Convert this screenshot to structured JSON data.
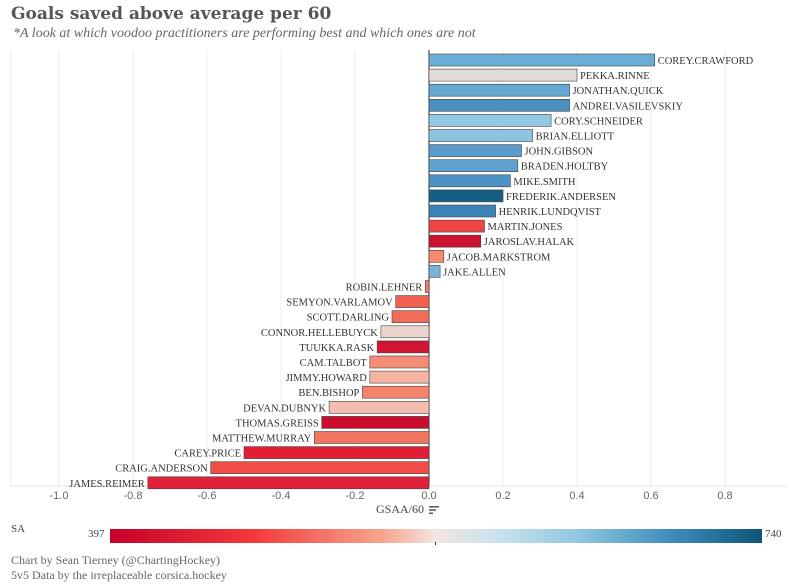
{
  "title": "Goals saved above average per 60",
  "subtitle": "*A look at which voodoo practitioners are performing best and which ones are not",
  "chart_data": {
    "type": "bar",
    "orientation": "horizontal",
    "xlabel": "GSAA/60",
    "xlim": [
      -1.1,
      0.95
    ],
    "xticks": [
      -1.0,
      -0.8,
      -0.6,
      -0.4,
      -0.2,
      0.0,
      0.2,
      0.4,
      0.6,
      0.8
    ],
    "xtick_labels": [
      "-1.0",
      "-0.8",
      "-0.6",
      "-0.4",
      "-0.2",
      "0.0",
      "0.2",
      "0.4",
      "0.6",
      "0.8"
    ],
    "grid": "vertical",
    "color_legend": {
      "label": "SA",
      "min": "397",
      "max": "740"
    },
    "bars": [
      {
        "name": "COREY.CRAWFORD",
        "value": 0.61,
        "color": "#6aaed6"
      },
      {
        "name": "PEKKA.RINNE",
        "value": 0.4,
        "color": "#e2dcd8"
      },
      {
        "name": "JONATHAN.QUICK",
        "value": 0.38,
        "color": "#64a8d2"
      },
      {
        "name": "ANDREI.VASILEVSKIY",
        "value": 0.38,
        "color": "#4b8fc0"
      },
      {
        "name": "CORY.SCHNEIDER",
        "value": 0.33,
        "color": "#93c8e2"
      },
      {
        "name": "BRIAN.ELLIOTT",
        "value": 0.28,
        "color": "#8cc4e0"
      },
      {
        "name": "JOHN.GIBSON",
        "value": 0.25,
        "color": "#5a9ccb"
      },
      {
        "name": "BRADEN.HOLTBY",
        "value": 0.24,
        "color": "#5fa2cf"
      },
      {
        "name": "MIKE.SMITH",
        "value": 0.22,
        "color": "#4c92c4"
      },
      {
        "name": "FREDERIK.ANDERSEN",
        "value": 0.2,
        "color": "#155f85"
      },
      {
        "name": "HENRIK.LUNDQVIST",
        "value": 0.18,
        "color": "#3a83b6"
      },
      {
        "name": "MARTIN.JONES",
        "value": 0.15,
        "color": "#ee4545"
      },
      {
        "name": "JAROSLAV.HALAK",
        "value": 0.14,
        "color": "#cc1230"
      },
      {
        "name": "JACOB.MARKSTROM",
        "value": 0.04,
        "color": "#f58a6e"
      },
      {
        "name": "JAKE.ALLEN",
        "value": 0.03,
        "color": "#78b4da"
      },
      {
        "name": "ROBIN.LEHNER",
        "value": -0.01,
        "color": "#f47e6a"
      },
      {
        "name": "SEMYON.VARLAMOV",
        "value": -0.09,
        "color": "#f06050"
      },
      {
        "name": "SCOTT.DARLING",
        "value": -0.1,
        "color": "#f26d58"
      },
      {
        "name": "CONNOR.HELLEBUYCK",
        "value": -0.13,
        "color": "#ebd5cc"
      },
      {
        "name": "TUUKKA.RASK",
        "value": -0.14,
        "color": "#d01432"
      },
      {
        "name": "CAM.TALBOT",
        "value": -0.16,
        "color": "#f58c75"
      },
      {
        "name": "JIMMY.HOWARD",
        "value": -0.16,
        "color": "#f7b3a2"
      },
      {
        "name": "BEN.BISHOP",
        "value": -0.18,
        "color": "#f5836c"
      },
      {
        "name": "DEVAN.DUBNYK",
        "value": -0.27,
        "color": "#f2bcae"
      },
      {
        "name": "THOMAS.GREISS",
        "value": -0.29,
        "color": "#cc0c2e"
      },
      {
        "name": "MATTHEW.MURRAY",
        "value": -0.31,
        "color": "#f2765f"
      },
      {
        "name": "CAREY.PRICE",
        "value": -0.5,
        "color": "#e21d35"
      },
      {
        "name": "CRAIG.ANDERSON",
        "value": -0.59,
        "color": "#ef4d45"
      },
      {
        "name": "JAMES.REIMER",
        "value": -0.76,
        "color": "#e1203a"
      }
    ]
  },
  "credits": {
    "line1": "Chart by Sean Tierney (@ChartingHockey)",
    "line2": "5v5 Data by the irreplaceable corsica.hockey"
  }
}
